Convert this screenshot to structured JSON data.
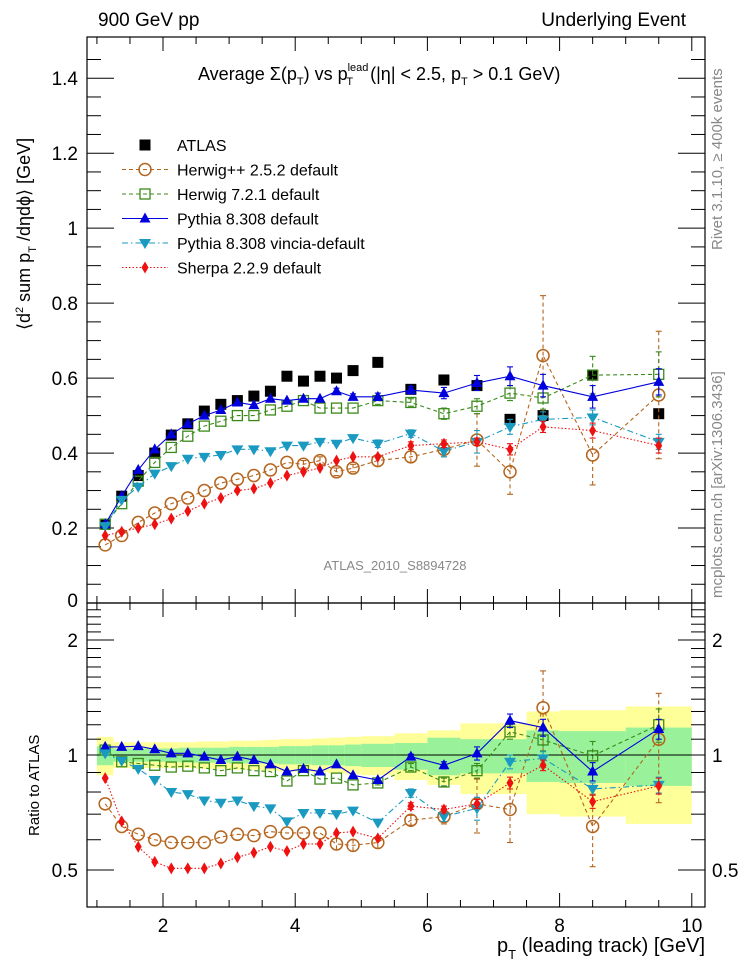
{
  "header": {
    "left": "900 GeV pp",
    "right": "Underlying Event"
  },
  "side_text": {
    "top": "Rivet 3.1.10, ≥ 400k events",
    "bottom": "mcplots.cern.ch [arXiv:1306.3436]"
  },
  "analysis_label": "ATLAS_2010_S8894728",
  "chart_data": [
    {
      "panel": "main",
      "type": "scatter",
      "title": "Average Σ(p_T) vs p_T^lead (|η| < 2.5, p_T > 0.1 GeV)",
      "title_parts": {
        "a": "Average Σ(p",
        "a_sub": "T",
        "b": ") vs p",
        "b_sub": "T",
        "b_sup": "lead",
        "c": " (|η| < 2.5, p",
        "c_sub": "T",
        "d": " > 0.1 GeV)"
      },
      "ylabel": "⟨d² sum p_T /dηdϕ⟩ [GeV]",
      "ylabel_parts": {
        "a": "⟨d",
        "sup": "2",
        "b": " sum p",
        "sub": "T",
        "c": " /dηdϕ⟩ [GeV]"
      },
      "ylim": [
        0,
        1.51
      ],
      "xlim": [
        0.85,
        10.2
      ],
      "yticks": [
        0.2,
        0.4,
        0.6,
        0.8,
        1,
        1.2,
        1.4
      ],
      "ytick_labels": [
        "0.2",
        "0.4",
        "0.6",
        "0.8",
        "1",
        "1.2",
        "1.4"
      ],
      "y_clipped_label": "0",
      "x": [
        1.125,
        1.375,
        1.625,
        1.875,
        2.125,
        2.375,
        2.625,
        2.875,
        3.125,
        3.375,
        3.625,
        3.875,
        4.125,
        4.375,
        4.625,
        4.875,
        5.25,
        5.75,
        6.25,
        6.75,
        7.25,
        7.75,
        8.5,
        9.5
      ],
      "legend_position": "top-left",
      "series": [
        {
          "name": "ATLAS",
          "style": "data",
          "color": "#000000",
          "marker": "square-filled",
          "line": "none",
          "values": [
            0.21,
            0.285,
            0.34,
            0.4,
            0.448,
            0.478,
            0.512,
            0.53,
            0.54,
            0.552,
            0.565,
            0.605,
            0.592,
            0.605,
            0.6,
            0.62,
            0.642,
            0.57,
            0.595,
            0.58,
            0.49,
            0.5,
            0.608,
            0.505
          ]
        },
        {
          "name": "Herwig++ 2.5.2 default",
          "color": "#b5651d",
          "marker": "circle-open",
          "line": "dashed",
          "values": [
            0.155,
            0.18,
            0.215,
            0.24,
            0.265,
            0.28,
            0.3,
            0.32,
            0.33,
            0.34,
            0.355,
            0.375,
            0.37,
            0.38,
            0.35,
            0.36,
            0.38,
            0.39,
            0.41,
            0.435,
            0.35,
            0.66,
            0.395,
            0.555
          ],
          "errors": [
            0,
            0,
            0,
            0,
            0,
            0,
            0,
            0,
            0,
            0,
            0,
            0,
            0.01,
            0.01,
            0.01,
            0.01,
            0.015,
            0.015,
            0.02,
            0.07,
            0.06,
            0.16,
            0.08,
            0.17
          ]
        },
        {
          "name": "Herwig 7.2.1 default",
          "color": "#3a8a1a",
          "marker": "square-open",
          "line": "dashed",
          "values": [
            0.21,
            0.265,
            0.325,
            0.375,
            0.415,
            0.445,
            0.472,
            0.485,
            0.5,
            0.5,
            0.515,
            0.525,
            0.54,
            0.52,
            0.52,
            0.52,
            0.54,
            0.535,
            0.505,
            0.525,
            0.56,
            0.547,
            0.608,
            0.61
          ],
          "errors": [
            0,
            0,
            0,
            0,
            0,
            0,
            0,
            0,
            0,
            0,
            0,
            0,
            0,
            0,
            0,
            0,
            0.01,
            0.01,
            0.015,
            0.02,
            0.02,
            0.03,
            0.05,
            0.06
          ]
        },
        {
          "name": "Pythia 8.308 default",
          "color": "#0000dd",
          "marker": "triangle-up",
          "line": "solid",
          "values": [
            0.21,
            0.285,
            0.355,
            0.41,
            0.45,
            0.478,
            0.5,
            0.515,
            0.535,
            0.528,
            0.545,
            0.54,
            0.545,
            0.545,
            0.565,
            0.55,
            0.55,
            0.568,
            0.56,
            0.587,
            0.605,
            0.58,
            0.55,
            0.59
          ],
          "errors": [
            0,
            0,
            0,
            0,
            0,
            0,
            0,
            0,
            0,
            0,
            0,
            0,
            0,
            0,
            0.008,
            0.008,
            0.01,
            0.01,
            0.015,
            0.02,
            0.025,
            0.03,
            0.03,
            0.035
          ]
        },
        {
          "name": "Pythia 8.308 vincia-default",
          "color": "#1a9ac0",
          "marker": "triangle-down",
          "line": "dashdot",
          "values": [
            0.205,
            0.275,
            0.31,
            0.345,
            0.365,
            0.385,
            0.39,
            0.395,
            0.41,
            0.41,
            0.405,
            0.42,
            0.42,
            0.43,
            0.425,
            0.44,
            0.425,
            0.452,
            0.405,
            0.43,
            0.47,
            0.49,
            0.495,
            0.43
          ],
          "errors": [
            0,
            0,
            0,
            0,
            0,
            0,
            0,
            0,
            0,
            0,
            0,
            0,
            0,
            0,
            0,
            0,
            0.01,
            0.01,
            0.015,
            0.03,
            0.02,
            0.02,
            0.02,
            0.02
          ]
        },
        {
          "name": "Sherpa 2.2.9 default",
          "color": "#ee1111",
          "marker": "diamond",
          "line": "dotted",
          "values": [
            0.18,
            0.19,
            0.2,
            0.21,
            0.225,
            0.245,
            0.265,
            0.28,
            0.3,
            0.305,
            0.32,
            0.34,
            0.35,
            0.36,
            0.38,
            0.39,
            0.39,
            0.42,
            0.425,
            0.43,
            0.41,
            0.47,
            0.46,
            0.42
          ],
          "errors": [
            0,
            0,
            0,
            0,
            0,
            0,
            0,
            0,
            0,
            0,
            0,
            0,
            0,
            0,
            0,
            0,
            0,
            0.01,
            0.01,
            0.01,
            0.015,
            0.015,
            0.02,
            0.02
          ]
        }
      ]
    },
    {
      "panel": "ratio",
      "type": "scatter",
      "ylabel": "Ratio to ATLAS",
      "yscale": "log",
      "ylim": [
        0.4,
        2.5
      ],
      "yticks": [
        0.5,
        1,
        2
      ],
      "ytick_labels": [
        "0.5",
        "1",
        "2"
      ],
      "xlabel": "p_T (leading track) [GeV]",
      "xlabel_parts": {
        "a": "p",
        "sub": "T",
        "b": " (leading track) [GeV]"
      },
      "xticks": [
        2,
        4,
        6,
        8,
        10
      ],
      "xtick_labels": [
        "2",
        "4",
        "6",
        "8",
        "10"
      ],
      "bands": {
        "bin_edges": [
          1.0,
          1.25,
          1.5,
          1.75,
          2.0,
          2.25,
          2.5,
          2.75,
          3.0,
          3.25,
          3.5,
          3.75,
          4.0,
          4.25,
          4.5,
          4.75,
          5.0,
          5.5,
          6.0,
          6.5,
          7.0,
          7.5,
          8.0,
          9.0,
          10.0
        ],
        "yellow": {
          "color": "#ffff99",
          "low": [
            0.885,
            0.925,
            0.925,
            0.925,
            0.925,
            0.925,
            0.92,
            0.92,
            0.915,
            0.915,
            0.91,
            0.905,
            0.905,
            0.9,
            0.895,
            0.89,
            0.885,
            0.86,
            0.835,
            0.79,
            0.79,
            0.7,
            0.69,
            0.66
          ],
          "high": [
            1.115,
            1.08,
            1.08,
            1.08,
            1.08,
            1.08,
            1.085,
            1.085,
            1.09,
            1.09,
            1.095,
            1.1,
            1.1,
            1.105,
            1.11,
            1.115,
            1.12,
            1.14,
            1.16,
            1.21,
            1.21,
            1.3,
            1.31,
            1.34
          ]
        },
        "green": {
          "color": "#99f299",
          "low": [
            0.94,
            0.96,
            0.96,
            0.96,
            0.96,
            0.955,
            0.955,
            0.955,
            0.95,
            0.95,
            0.95,
            0.945,
            0.945,
            0.94,
            0.94,
            0.935,
            0.93,
            0.915,
            0.885,
            0.895,
            0.895,
            0.85,
            0.845,
            0.83
          ],
          "high": [
            1.055,
            1.04,
            1.04,
            1.04,
            1.04,
            1.045,
            1.045,
            1.045,
            1.05,
            1.05,
            1.05,
            1.055,
            1.055,
            1.06,
            1.06,
            1.065,
            1.07,
            1.075,
            1.11,
            1.1,
            1.1,
            1.16,
            1.155,
            1.18
          ]
        }
      },
      "series": [
        {
          "name": "Herwig++ 2.5.2 default",
          "values": [
            0.745,
            0.65,
            0.62,
            0.6,
            0.59,
            0.59,
            0.59,
            0.61,
            0.62,
            0.615,
            0.63,
            0.625,
            0.625,
            0.625,
            0.585,
            0.58,
            0.59,
            0.675,
            0.69,
            0.745,
            0.72,
            1.33,
            0.65,
            1.1
          ],
          "errors": [
            0,
            0,
            0,
            0,
            0,
            0,
            0,
            0,
            0,
            0,
            0,
            0,
            0,
            0,
            0.02,
            0.02,
            0.02,
            0.02,
            0.03,
            0.12,
            0.13,
            0.33,
            0.14,
            0.35
          ]
        },
        {
          "name": "Herwig 7.2.1 default",
          "values": [
            1.03,
            0.96,
            0.95,
            0.94,
            0.93,
            0.935,
            0.925,
            0.91,
            0.925,
            0.91,
            0.905,
            0.855,
            0.91,
            0.865,
            0.87,
            0.835,
            0.845,
            0.93,
            0.85,
            0.91,
            1.15,
            1.095,
            0.995,
            1.2
          ],
          "errors": [
            0,
            0,
            0,
            0,
            0,
            0,
            0,
            0,
            0,
            0,
            0,
            0,
            0,
            0,
            0,
            0,
            0.01,
            0.02,
            0.02,
            0.04,
            0.05,
            0.07,
            0.09,
            0.12
          ]
        },
        {
          "name": "Pythia 8.308 default",
          "values": [
            1.05,
            1.05,
            1.055,
            1.035,
            1.01,
            1.01,
            0.99,
            0.97,
            0.99,
            0.97,
            0.945,
            0.905,
            0.92,
            0.905,
            0.945,
            0.885,
            0.86,
            0.99,
            0.94,
            1.01,
            1.23,
            1.18,
            0.905,
            1.17
          ],
          "errors": [
            0,
            0,
            0,
            0,
            0,
            0,
            0,
            0,
            0,
            0,
            0,
            0,
            0,
            0,
            0,
            0,
            0,
            0.015,
            0.02,
            0.04,
            0.05,
            0.06,
            0.05,
            0.07
          ]
        },
        {
          "name": "Pythia 8.308 vincia-default",
          "values": [
            1.01,
            0.965,
            0.92,
            0.86,
            0.8,
            0.79,
            0.76,
            0.75,
            0.76,
            0.735,
            0.725,
            0.67,
            0.705,
            0.705,
            0.7,
            0.715,
            0.665,
            0.795,
            0.69,
            0.725,
            0.96,
            0.98,
            0.815,
            0.835
          ],
          "errors": [
            0,
            0,
            0,
            0,
            0,
            0,
            0,
            0,
            0,
            0,
            0,
            0,
            0,
            0,
            0,
            0,
            0,
            0.02,
            0.02,
            0.05,
            0.04,
            0.04,
            0.03,
            0.04
          ]
        },
        {
          "name": "Sherpa 2.2.9 default",
          "values": [
            0.87,
            0.67,
            0.575,
            0.525,
            0.505,
            0.505,
            0.505,
            0.52,
            0.54,
            0.555,
            0.575,
            0.56,
            0.585,
            0.585,
            0.625,
            0.63,
            0.605,
            0.735,
            0.72,
            0.745,
            0.845,
            0.94,
            0.755,
            0.83
          ],
          "errors": [
            0,
            0,
            0,
            0,
            0,
            0,
            0,
            0,
            0,
            0,
            0,
            0,
            0,
            0,
            0,
            0,
            0,
            0.015,
            0.015,
            0.02,
            0.03,
            0.03,
            0.03,
            0.04
          ]
        }
      ]
    }
  ]
}
